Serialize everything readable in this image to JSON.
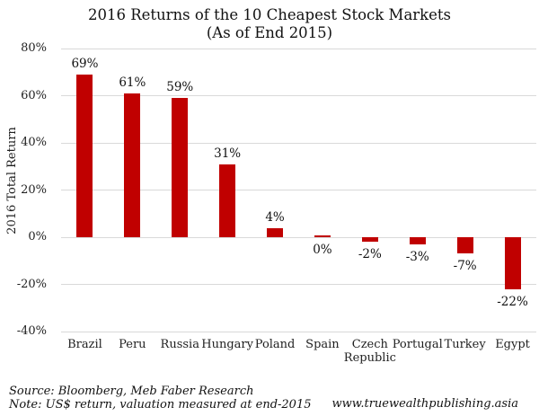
{
  "title": {
    "line1": "2016 Returns of the 10 Cheapest Stock Markets",
    "line2": "(As of End 2015)"
  },
  "chart_data": {
    "type": "bar",
    "title": "2016 Returns of the 10 Cheapest Stock Markets (As of End 2015)",
    "categories": [
      "Brazil",
      "Peru",
      "Russia",
      "Hungary",
      "Poland",
      "Spain",
      "Czech Republic",
      "Portugal",
      "Turkey",
      "Egypt"
    ],
    "values": [
      69,
      61,
      59,
      31,
      4,
      0,
      -2,
      -3,
      -7,
      -22
    ],
    "value_labels": [
      "69%",
      "61%",
      "59%",
      "31%",
      "4%",
      "0%",
      "-2%",
      "-3%",
      "-7%",
      "-22%"
    ],
    "xlabel": "",
    "ylabel": "2016 Total Return",
    "ylim": [
      -40,
      80
    ],
    "ytick_step": 20,
    "ytick_labels": [
      "80%",
      "60%",
      "40%",
      "20%",
      "0%",
      "-20%",
      "-40%"
    ],
    "grid": true,
    "legend": "none",
    "bar_color": "#c00000"
  },
  "colors": {
    "bar": "#c00000",
    "gridline": "#d9d9d9",
    "text": "#1f1f1f",
    "background": "#ffffff"
  },
  "footer": {
    "source": "Source: Bloomberg, Meb Faber Research",
    "note": "Note: US$ return, valuation measured at end-2015",
    "website": "www.truewealthpublishing.asia"
  }
}
